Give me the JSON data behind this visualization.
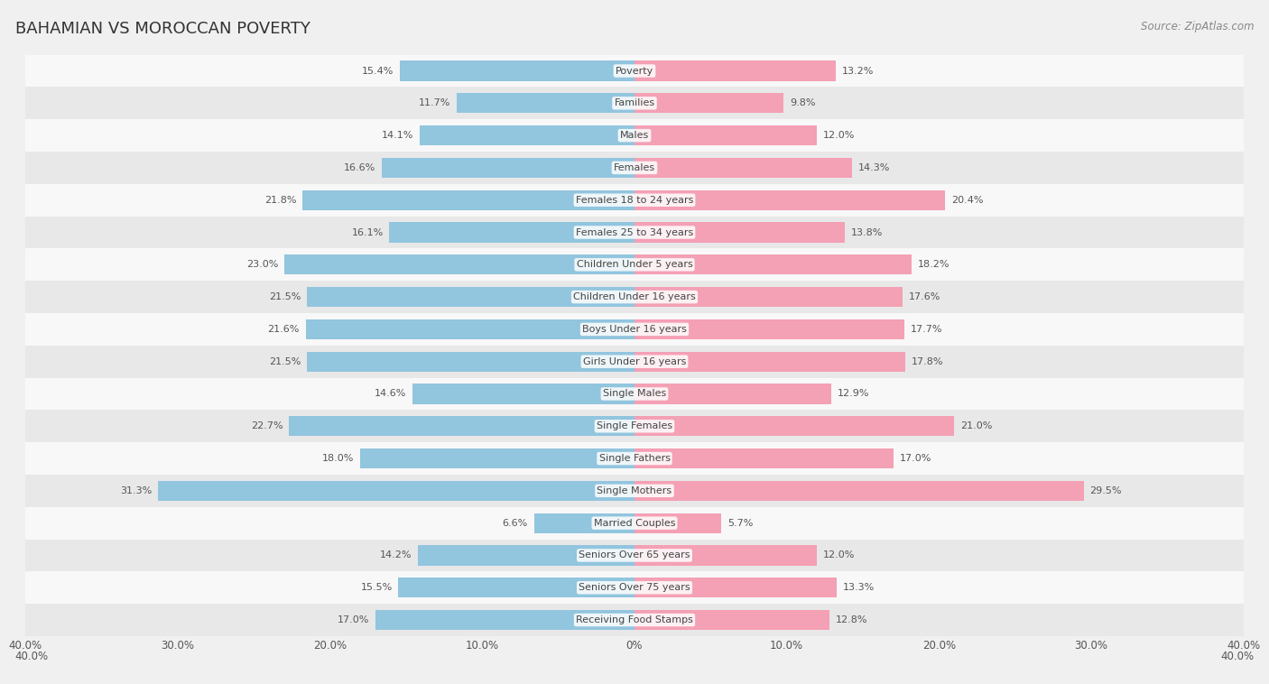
{
  "title": "BAHAMIAN VS MOROCCAN POVERTY",
  "source": "Source: ZipAtlas.com",
  "categories": [
    "Poverty",
    "Families",
    "Males",
    "Females",
    "Females 18 to 24 years",
    "Females 25 to 34 years",
    "Children Under 5 years",
    "Children Under 16 years",
    "Boys Under 16 years",
    "Girls Under 16 years",
    "Single Males",
    "Single Females",
    "Single Fathers",
    "Single Mothers",
    "Married Couples",
    "Seniors Over 65 years",
    "Seniors Over 75 years",
    "Receiving Food Stamps"
  ],
  "bahamian": [
    15.4,
    11.7,
    14.1,
    16.6,
    21.8,
    16.1,
    23.0,
    21.5,
    21.6,
    21.5,
    14.6,
    22.7,
    18.0,
    31.3,
    6.6,
    14.2,
    15.5,
    17.0
  ],
  "moroccan": [
    13.2,
    9.8,
    12.0,
    14.3,
    20.4,
    13.8,
    18.2,
    17.6,
    17.7,
    17.8,
    12.9,
    21.0,
    17.0,
    29.5,
    5.7,
    12.0,
    13.3,
    12.8
  ],
  "bahamian_color": "#92C5DE",
  "moroccan_color": "#F4A0B5",
  "axis_max": 40.0,
  "bar_height": 0.62,
  "background_color": "#f0f0f0",
  "row_bg_light": "#f8f8f8",
  "row_bg_dark": "#e8e8e8"
}
